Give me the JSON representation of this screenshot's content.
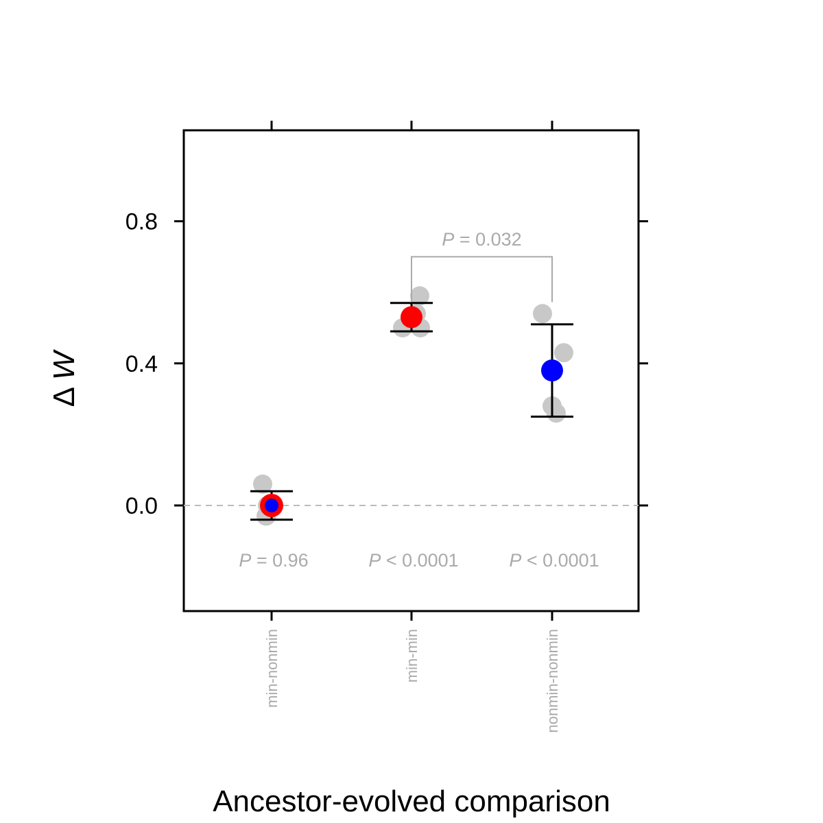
{
  "chart_data": {
    "type": "scatter",
    "xlabel": "Ancestor-evolved comparison",
    "ylabel_symbol": "Δ",
    "ylabel_var": "W",
    "ylim": [
      -0.3,
      1.05
    ],
    "y_ticks": [
      0.0,
      0.4,
      0.8
    ],
    "y_tick_labels": [
      "0.0",
      "0.4",
      "0.8"
    ],
    "categories": [
      "min-nonmin",
      "min-min",
      "nonmin-nonmin"
    ],
    "reference_line": {
      "y": 0.0,
      "style": "dashed",
      "color": "#bbbbbb"
    },
    "replicates": [
      {
        "category": "min-nonmin",
        "values": [
          0.06,
          0.0,
          -0.03
        ]
      },
      {
        "category": "min-min",
        "values": [
          0.59,
          0.54,
          0.5,
          0.5
        ]
      },
      {
        "category": "nonmin-nonmin",
        "values": [
          0.54,
          0.43,
          0.28,
          0.26
        ]
      }
    ],
    "means": [
      {
        "category": "min-nonmin",
        "value": 0.0,
        "error_low": -0.04,
        "error_high": 0.04,
        "fill": "#0000ff",
        "ring": "#ff0000"
      },
      {
        "category": "min-min",
        "value": 0.53,
        "error_low": 0.49,
        "error_high": 0.57,
        "fill": "#ff0000",
        "ring": null
      },
      {
        "category": "nonmin-nonmin",
        "value": 0.38,
        "error_low": 0.25,
        "error_high": 0.51,
        "fill": "#0000ff",
        "ring": null
      }
    ],
    "pvalues": [
      {
        "category": "min-nonmin",
        "prefix": "P",
        "rest": " = 0.96"
      },
      {
        "category": "min-min",
        "prefix": "P",
        "rest": " < 0.0001"
      },
      {
        "category": "nonmin-nonmin",
        "prefix": "P",
        "rest": " < 0.0001"
      }
    ],
    "bracket": {
      "from": "min-min",
      "to": "nonmin-nonmin",
      "prefix": "P",
      "rest": " = 0.032",
      "y": 0.64,
      "top": 0.7
    },
    "colors": {
      "replicate": "#c8c8c8",
      "annotation": "#aaaaaa",
      "axis": "#000000"
    }
  }
}
